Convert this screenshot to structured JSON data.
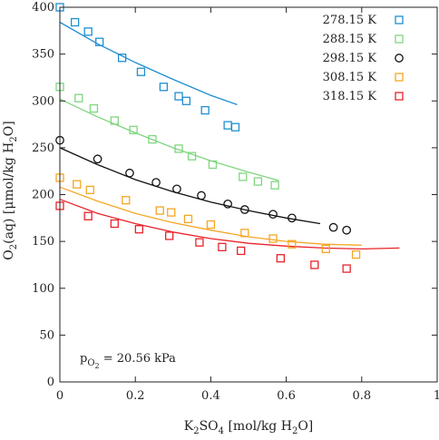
{
  "chart_data": {
    "type": "scatter",
    "xlabel": {
      "main": "K",
      "sub1": "2",
      "mid": "SO",
      "sub2": "4",
      "rest": " [mol/kg H",
      "sub3": "2",
      "end": "O]"
    },
    "ylabel": {
      "main": "O",
      "sub1": "2",
      "rest": "(aq) [μmol/kg H",
      "sub2": "2",
      "end": "O]"
    },
    "xlim": [
      0,
      1
    ],
    "ylim": [
      0,
      400
    ],
    "xticks": [
      0,
      0.2,
      0.4,
      0.6,
      0.8,
      1
    ],
    "xtick_labels": [
      "0",
      "0.2",
      "0.4",
      "0.6",
      "0.8",
      "1"
    ],
    "yticks": [
      0,
      50,
      100,
      150,
      200,
      250,
      300,
      350,
      400
    ],
    "ytick_labels": [
      "0",
      "50",
      "100",
      "150",
      "200",
      "250",
      "300",
      "350",
      "400"
    ],
    "grid": false,
    "legend_position": "top-right",
    "annotation": {
      "prefix": "p",
      "sub1": "O",
      "sub2": "2",
      "suffix": " = 20.56 kPa"
    },
    "series": [
      {
        "name": "278.15 K",
        "color": "#1f8fd0",
        "marker": "square",
        "points": [
          [
            0.0,
            400
          ],
          [
            0.04,
            384
          ],
          [
            0.075,
            374
          ],
          [
            0.105,
            363
          ],
          [
            0.165,
            346
          ],
          [
            0.215,
            331
          ],
          [
            0.275,
            315
          ],
          [
            0.315,
            305
          ],
          [
            0.335,
            300
          ],
          [
            0.385,
            290
          ],
          [
            0.445,
            274
          ],
          [
            0.465,
            272
          ]
        ],
        "fit": [
          [
            0.0,
            384
          ],
          [
            0.1,
            361
          ],
          [
            0.2,
            341
          ],
          [
            0.3,
            323
          ],
          [
            0.4,
            306
          ],
          [
            0.47,
            296
          ]
        ]
      },
      {
        "name": "288.15 K",
        "color": "#7fd67f",
        "marker": "square",
        "points": [
          [
            0.0,
            315
          ],
          [
            0.05,
            303
          ],
          [
            0.09,
            292
          ],
          [
            0.145,
            279
          ],
          [
            0.195,
            269
          ],
          [
            0.245,
            259
          ],
          [
            0.315,
            249
          ],
          [
            0.35,
            241
          ],
          [
            0.405,
            232
          ],
          [
            0.485,
            219
          ],
          [
            0.525,
            214
          ],
          [
            0.57,
            210
          ]
        ],
        "fit": [
          [
            0.0,
            302
          ],
          [
            0.1,
            283
          ],
          [
            0.2,
            266
          ],
          [
            0.3,
            250
          ],
          [
            0.4,
            236
          ],
          [
            0.5,
            224
          ],
          [
            0.58,
            215
          ]
        ]
      },
      {
        "name": "298.15 K",
        "color": "#111111",
        "marker": "circle",
        "points": [
          [
            0.0,
            258
          ],
          [
            0.1,
            238
          ],
          [
            0.185,
            223
          ],
          [
            0.255,
            213
          ],
          [
            0.31,
            206
          ],
          [
            0.375,
            199
          ],
          [
            0.445,
            190
          ],
          [
            0.49,
            184
          ],
          [
            0.565,
            179
          ],
          [
            0.615,
            175
          ],
          [
            0.725,
            165
          ],
          [
            0.76,
            162
          ]
        ],
        "fit": [
          [
            0.0,
            250
          ],
          [
            0.1,
            232
          ],
          [
            0.2,
            216
          ],
          [
            0.3,
            203
          ],
          [
            0.4,
            192
          ],
          [
            0.5,
            183
          ],
          [
            0.6,
            175
          ],
          [
            0.69,
            169
          ]
        ]
      },
      {
        "name": "308.15 K",
        "color": "#f5a623",
        "marker": "square",
        "points": [
          [
            0.0,
            218
          ],
          [
            0.045,
            211
          ],
          [
            0.08,
            205
          ],
          [
            0.175,
            194
          ],
          [
            0.265,
            183
          ],
          [
            0.295,
            181
          ],
          [
            0.34,
            174
          ],
          [
            0.4,
            168
          ],
          [
            0.49,
            159
          ],
          [
            0.565,
            153
          ],
          [
            0.615,
            147
          ],
          [
            0.705,
            142
          ],
          [
            0.785,
            136
          ]
        ],
        "fit": [
          [
            0.0,
            208
          ],
          [
            0.1,
            193
          ],
          [
            0.2,
            180
          ],
          [
            0.3,
            170
          ],
          [
            0.4,
            162
          ],
          [
            0.5,
            155
          ],
          [
            0.6,
            150
          ],
          [
            0.7,
            147
          ],
          [
            0.8,
            146
          ]
        ]
      },
      {
        "name": "318.15 K",
        "color": "#e8232a",
        "marker": "square",
        "points": [
          [
            0.0,
            188
          ],
          [
            0.075,
            177
          ],
          [
            0.145,
            169
          ],
          [
            0.21,
            163
          ],
          [
            0.29,
            156
          ],
          [
            0.37,
            149
          ],
          [
            0.43,
            144
          ],
          [
            0.48,
            140
          ],
          [
            0.585,
            132
          ],
          [
            0.675,
            125
          ],
          [
            0.76,
            121
          ]
        ],
        "fit": [
          [
            0.0,
            195
          ],
          [
            0.1,
            180
          ],
          [
            0.2,
            169
          ],
          [
            0.3,
            160
          ],
          [
            0.4,
            153
          ],
          [
            0.5,
            148
          ],
          [
            0.6,
            145
          ],
          [
            0.7,
            143
          ],
          [
            0.8,
            142
          ],
          [
            0.9,
            143
          ]
        ]
      }
    ]
  }
}
